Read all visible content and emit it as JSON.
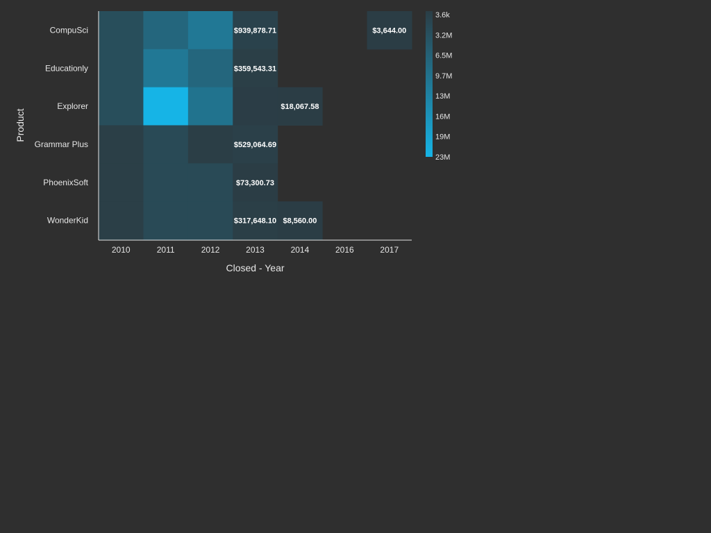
{
  "chart_data": {
    "type": "heatmap",
    "xlabel": "Closed - Year",
    "ylabel": "Product",
    "x_categories": [
      "2010",
      "2011",
      "2012",
      "2013",
      "2014",
      "2016",
      "2017"
    ],
    "y_categories": [
      "CompuSci",
      "Educationly",
      "Explorer",
      "Grammar Plus",
      "PhoenixSoft",
      "WonderKid"
    ],
    "cells": [
      {
        "product": "CompuSci",
        "year": "2010",
        "value": 3200000
      },
      {
        "product": "CompuSci",
        "year": "2011",
        "value": 8000000
      },
      {
        "product": "CompuSci",
        "year": "2012",
        "value": 11500000
      },
      {
        "product": "CompuSci",
        "year": "2013",
        "value": 939878.71,
        "label": "$939,878.71"
      },
      {
        "product": "CompuSci",
        "year": "2017",
        "value": 3644.0,
        "label": "$3,644.00"
      },
      {
        "product": "Educationly",
        "year": "2010",
        "value": 3200000
      },
      {
        "product": "Educationly",
        "year": "2011",
        "value": 11500000
      },
      {
        "product": "Educationly",
        "year": "2012",
        "value": 8000000
      },
      {
        "product": "Educationly",
        "year": "2013",
        "value": 359543.31,
        "label": "$359,543.31"
      },
      {
        "product": "Explorer",
        "year": "2010",
        "value": 3200000
      },
      {
        "product": "Explorer",
        "year": "2011",
        "value": 23000000
      },
      {
        "product": "Explorer",
        "year": "2012",
        "value": 10500000
      },
      {
        "product": "Explorer",
        "year": "2013",
        "value": 100000
      },
      {
        "product": "Explorer",
        "year": "2014",
        "value": 18067.58,
        "label": "$18,067.58"
      },
      {
        "product": "Grammar Plus",
        "year": "2010",
        "value": 300000
      },
      {
        "product": "Grammar Plus",
        "year": "2011",
        "value": 2500000
      },
      {
        "product": "Grammar Plus",
        "year": "2012",
        "value": 200000
      },
      {
        "product": "Grammar Plus",
        "year": "2013",
        "value": 529064.69,
        "label": "$529,064.69"
      },
      {
        "product": "PhoenixSoft",
        "year": "2010",
        "value": 300000
      },
      {
        "product": "PhoenixSoft",
        "year": "2011",
        "value": 2500000
      },
      {
        "product": "PhoenixSoft",
        "year": "2012",
        "value": 2500000
      },
      {
        "product": "PhoenixSoft",
        "year": "2013",
        "value": 73300.73,
        "label": "$73,300.73"
      },
      {
        "product": "WonderKid",
        "year": "2010",
        "value": 300000
      },
      {
        "product": "WonderKid",
        "year": "2011",
        "value": 2500000
      },
      {
        "product": "WonderKid",
        "year": "2012",
        "value": 2500000
      },
      {
        "product": "WonderKid",
        "year": "2013",
        "value": 317648.1,
        "label": "$317,648.10"
      },
      {
        "product": "WonderKid",
        "year": "2014",
        "value": 8560.0,
        "label": "$8,560.00"
      }
    ],
    "color_scale": {
      "min": 3600,
      "max": 23000000,
      "low_color": "#2b3d45",
      "high_color": "#16b4e6",
      "legend_ticks": [
        "3.6k",
        "3.2M",
        "6.5M",
        "9.7M",
        "13M",
        "16M",
        "19M",
        "23M"
      ]
    },
    "legend_position": "right",
    "grid": false
  },
  "colors": {
    "background": "#2f2f2f",
    "text": "#e6e6e6",
    "axis": "#e6e6e6"
  }
}
